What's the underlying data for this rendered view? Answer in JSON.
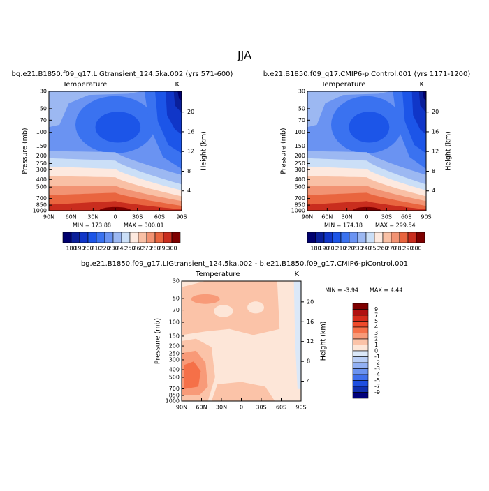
{
  "title": "JJA",
  "panels": [
    {
      "title": "bg.e21.B1850.f09_g17.LIGtransient_124.5ka.002 (yrs 571-600)",
      "variable": "Temperature",
      "units": "K",
      "ylabel": "Pressure (mb)",
      "y2label": "Height (km)",
      "min": "MIN = 173.88",
      "max": "MAX = 300.01",
      "xlim": [
        90,
        -90
      ],
      "xticks": [
        {
          "value": 90,
          "label": "90N"
        },
        {
          "value": 60,
          "label": "60N"
        },
        {
          "value": 30,
          "label": "30N"
        },
        0,
        {
          "value": -30,
          "label": "30S"
        },
        {
          "value": -60,
          "label": "60S"
        },
        {
          "value": -90,
          "label": "90S"
        }
      ],
      "ylim": [
        1000,
        30
      ],
      "ylog": true,
      "yticks": [
        30,
        50,
        70,
        100,
        150,
        200,
        250,
        300,
        400,
        500,
        700,
        850,
        1000
      ],
      "y2lim": [
        0,
        24.2
      ],
      "y2ticks": [
        4,
        8,
        12,
        16,
        20
      ],
      "colorbar": {
        "labels": [
          180,
          190,
          200,
          210,
          220,
          230,
          240,
          250,
          260,
          270,
          280,
          290,
          300
        ],
        "colors": [
          "#00006e",
          "#0a1f9a",
          "#1036c8",
          "#1c55e8",
          "#3a72f0",
          "#6a93f2",
          "#9cb8f2",
          "#cbdff7",
          "#fde9df",
          "#f9c0a5",
          "#f29373",
          "#e9653f",
          "#c92d1e",
          "#7e0000"
        ]
      }
    },
    {
      "title": "b.e21.B1850.f09_g17.CMIP6-piControl.001 (yrs 1171-1200)",
      "variable": "Temperature",
      "units": "K",
      "ylabel": "Pressure (mb)",
      "y2label": "Height (km)",
      "min": "MIN = 174.18",
      "max": "MAX = 299.54",
      "xlim": [
        90,
        -90
      ],
      "xticks": [
        {
          "value": 90,
          "label": "90N"
        },
        {
          "value": 60,
          "label": "60N"
        },
        {
          "value": 30,
          "label": "30N"
        },
        0,
        {
          "value": -30,
          "label": "30S"
        },
        {
          "value": -60,
          "label": "60S"
        },
        {
          "value": -90,
          "label": "90S"
        }
      ],
      "ylim": [
        1000,
        30
      ],
      "ylog": true,
      "yticks": [
        30,
        50,
        70,
        100,
        150,
        200,
        250,
        300,
        400,
        500,
        700,
        850,
        1000
      ],
      "y2lim": [
        0,
        24.2
      ],
      "y2ticks": [
        4,
        8,
        12,
        16,
        20
      ],
      "colorbar": {
        "labels": [
          180,
          190,
          200,
          210,
          220,
          230,
          240,
          250,
          260,
          270,
          280,
          290,
          300
        ],
        "colors": [
          "#00006e",
          "#0a1f9a",
          "#1036c8",
          "#1c55e8",
          "#3a72f0",
          "#6a93f2",
          "#9cb8f2",
          "#cbdff7",
          "#fde9df",
          "#f9c0a5",
          "#f29373",
          "#e9653f",
          "#c92d1e",
          "#7e0000"
        ]
      }
    },
    {
      "title": "bg.e21.B1850.f09_g17.LIGtransient_124.5ka.002 - b.e21.B1850.f09_g17.CMIP6-piControl.001",
      "variable": "Temperature",
      "units": "K",
      "ylabel": "Pressure (mb)",
      "y2label": "Height (km)",
      "min": "MIN = -3.94",
      "max": "MAX = 4.44",
      "xlim": [
        90,
        -90
      ],
      "xticks": [
        {
          "value": 90,
          "label": "90N"
        },
        {
          "value": 60,
          "label": "60N"
        },
        {
          "value": 30,
          "label": "30N"
        },
        0,
        {
          "value": -30,
          "label": "30S"
        },
        {
          "value": -60,
          "label": "60S"
        },
        {
          "value": -90,
          "label": "90S"
        }
      ],
      "ylim": [
        1000,
        30
      ],
      "ylog": true,
      "yticks": [
        30,
        50,
        70,
        100,
        150,
        200,
        250,
        300,
        400,
        500,
        700,
        850,
        1000
      ],
      "y2lim": [
        0,
        24.2
      ],
      "y2ticks": [
        4,
        8,
        12,
        16,
        20
      ],
      "colorbar": {
        "labels": [
          9,
          7,
          5,
          4,
          3,
          2,
          1,
          0,
          -1,
          -2,
          -3,
          -4,
          -5,
          -7,
          -9
        ],
        "colors": [
          "#7e0000",
          "#b01010",
          "#d42a1a",
          "#ee4a2a",
          "#f57048",
          "#f89a78",
          "#fbc3a8",
          "#fde6d8",
          "#dbe8f8",
          "#b9cef6",
          "#92b0f3",
          "#6a92f0",
          "#3f6fec",
          "#1e4fe0",
          "#1030b0",
          "#00007a"
        ]
      }
    }
  ]
}
